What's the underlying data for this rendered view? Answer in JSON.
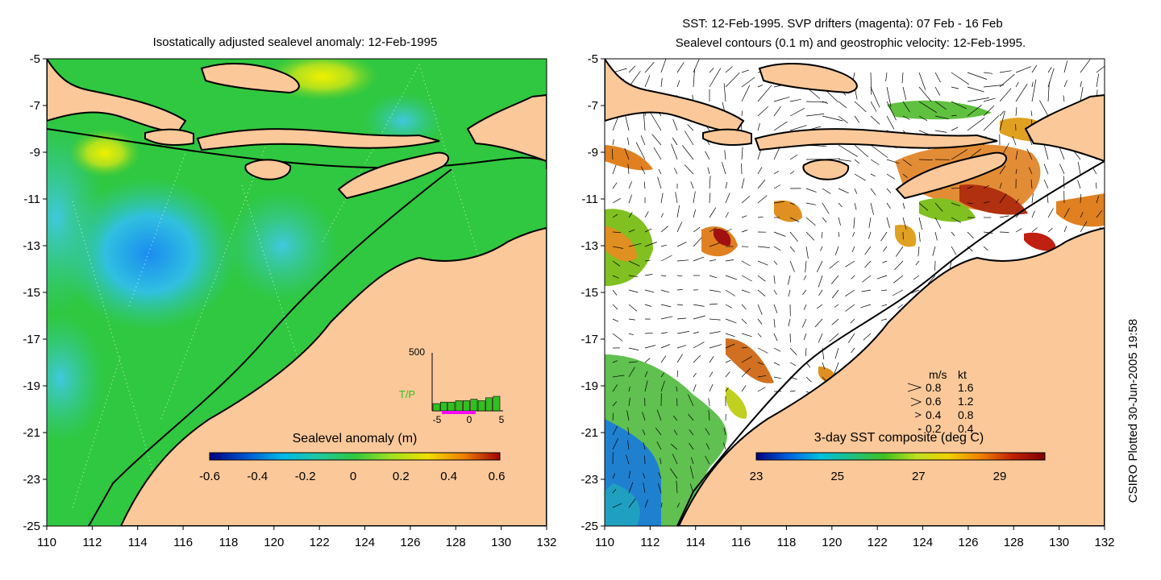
{
  "left_panel": {
    "title": "Isostatically adjusted sealevel anomaly: 12-Feb-1995",
    "colorbar_label": "Sealevel anomaly (m)",
    "colorbar_ticks": [
      "-0.6",
      "-0.4",
      "-0.2",
      "0",
      "0.2",
      "0.4",
      "0.6"
    ],
    "colorbar_stops": [
      "#000080",
      "#0055d0",
      "#00b8e8",
      "#20c8a0",
      "#30c840",
      "#a0e020",
      "#f0e000",
      "#f08000",
      "#a00000"
    ],
    "inset": {
      "label": "T/P",
      "ymax_label": "500",
      "ticks": [
        "-5",
        "0",
        "5"
      ],
      "bars": [
        0.25,
        0.3,
        0.3,
        0.35,
        0.35,
        0.4,
        0.35,
        0.45,
        0.5
      ]
    }
  },
  "right_panel": {
    "title_line1": "SST: 12-Feb-1995. SVP drifters (magenta): 07 Feb - 16 Feb",
    "title_line2": "Sealevel contours (0.1 m) and geostrophic velocity: 12-Feb-1995.",
    "colorbar_label": "3-day SST composite (deg C)",
    "colorbar_ticks": [
      "23",
      "25",
      "27",
      "29"
    ],
    "colorbar_stops": [
      "#000080",
      "#0060e0",
      "#00c0e0",
      "#20c080",
      "#40c020",
      "#c0e020",
      "#f0d000",
      "#f08000",
      "#c02000",
      "#800000"
    ],
    "velocity_legend": {
      "header_ms": "m/s",
      "header_kt": "kt",
      "rows": [
        {
          "ms": "0.8",
          "kt": "1.6"
        },
        {
          "ms": "0.6",
          "kt": "1.2"
        },
        {
          "ms": "0.4",
          "kt": "0.8"
        },
        {
          "ms": "0.2",
          "kt": "0.4"
        }
      ]
    }
  },
  "axes": {
    "x_ticks": [
      "110",
      "112",
      "114",
      "116",
      "118",
      "120",
      "122",
      "124",
      "126",
      "128",
      "130",
      "132"
    ],
    "y_ticks": [
      "-5",
      "-7",
      "-9",
      "-11",
      "-13",
      "-15",
      "-17",
      "-19",
      "-21",
      "-23",
      "-25"
    ]
  },
  "credit": "CSIRO Plotted 30-Jun-2005 19:58",
  "colors": {
    "land": "#fbc89a",
    "ocean_base": "#30c840",
    "white": "#ffffff"
  }
}
